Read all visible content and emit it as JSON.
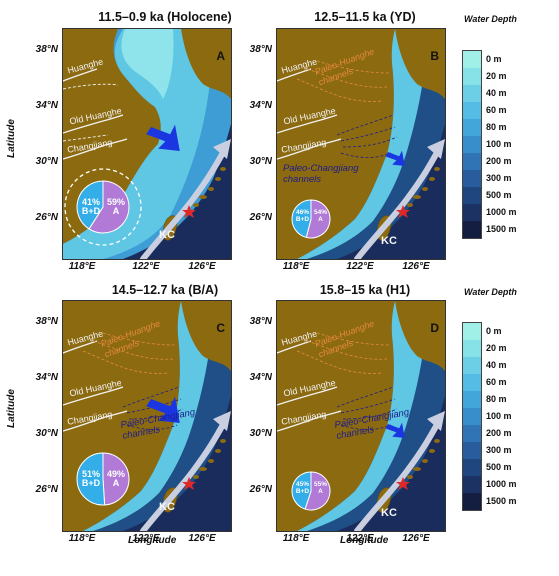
{
  "panels": [
    {
      "title": "11.5–0.9 ka (Holocene)",
      "letter": "A",
      "rivers": [
        "Huanghe",
        "Old Huanghe",
        "Changjiang"
      ],
      "paleo_huanghe": "",
      "paleo_changjiang": "",
      "current": "KC",
      "pie": {
        "a_pct": "59%",
        "a_label": "A",
        "bd_pct": "41%",
        "bd_label": "B+D",
        "a_fraction": 0.59
      }
    },
    {
      "title": "12.5–11.5 ka (YD)",
      "letter": "B",
      "rivers": [
        "Huanghe",
        "Old Huanghe",
        "Changjiang"
      ],
      "paleo_huanghe": "Paleo-Huanghe channels",
      "paleo_changjiang": "Paleo-Changjiang channels",
      "current": "KC",
      "pie": {
        "a_pct": "54%",
        "a_label": "A",
        "bd_pct": "46%",
        "bd_label": "B+D",
        "a_fraction": 0.54
      }
    },
    {
      "title": "14.5–12.7 ka (B/A)",
      "letter": "C",
      "rivers": [
        "Huanghe",
        "Old Huanghe",
        "Changjiang"
      ],
      "paleo_huanghe": "Paleo-Huanghe channels",
      "paleo_changjiang": "Paleo-Changjiang channels",
      "current": "KC",
      "pie": {
        "a_pct": "49%",
        "a_label": "A",
        "bd_pct": "51%",
        "bd_label": "B+D",
        "a_fraction": 0.49
      }
    },
    {
      "title": "15.8–15 ka (H1)",
      "letter": "D",
      "rivers": [
        "Huanghe",
        "Old Huanghe",
        "Changjiang"
      ],
      "paleo_huanghe": "Paleo-Huanghe channels",
      "paleo_changjiang": "Paleo-Changjiang channels",
      "current": "KC",
      "pie": {
        "a_pct": "55%",
        "a_label": "A",
        "bd_pct": "45%",
        "bd_label": "B+D",
        "a_fraction": 0.55
      }
    }
  ],
  "lat_ticks": [
    "38°N",
    "34°N",
    "30°N",
    "26°N"
  ],
  "lon_ticks": [
    "118°E",
    "122°E",
    "126°E"
  ],
  "axis": {
    "x_title": "Longitude",
    "y_title": "Latitude"
  },
  "legend": {
    "title": "Water Depth",
    "ticks": [
      "0 m",
      "20 m",
      "40 m",
      "60 m",
      "80 m",
      "100 m",
      "200 m",
      "300 m",
      "500 m",
      "1000 m",
      "1500 m"
    ],
    "colors": [
      "#a0f0e8",
      "#86e2e6",
      "#6dcfe6",
      "#55bce5",
      "#43a6db",
      "#388dcb",
      "#3074b5",
      "#285c9c",
      "#204680",
      "#1b3262",
      "#141e40"
    ]
  },
  "colors": {
    "land": "#8c6a10",
    "shelf": "#5fc7e4",
    "shallow": "#8fe3ea",
    "deep": "#1a2c5b",
    "pie_a": "#b07ad6",
    "pie_bd": "#34aee8",
    "arrow": "#1a36e0",
    "kc": "#c9cfe0"
  }
}
